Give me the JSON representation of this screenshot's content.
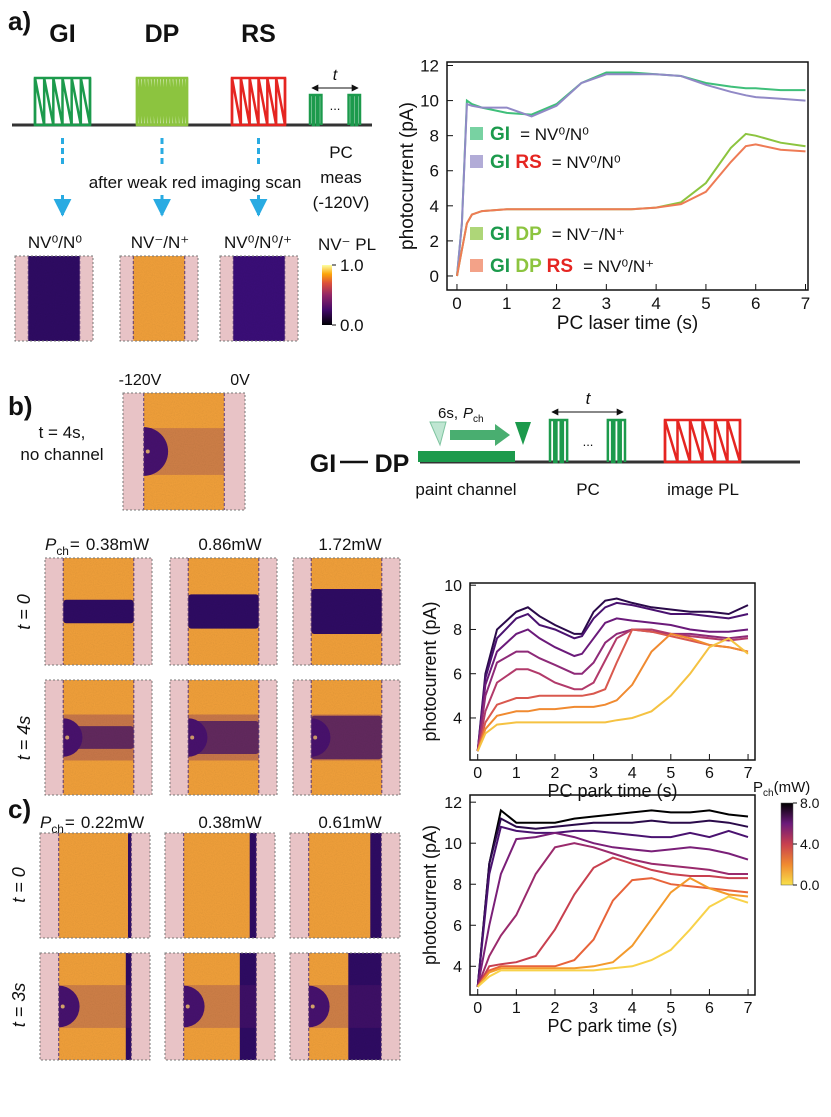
{
  "panel_labels": [
    "a)",
    "b)",
    "c)"
  ],
  "sequence_colors": {
    "GI": "#1c9a4c",
    "DP": "#8cc43f",
    "RS": "#e52521"
  },
  "panel_a": {
    "pulses": [
      "GI",
      "DP",
      "RS"
    ],
    "period": "t",
    "ellipsis": "...",
    "pc_meas": [
      "PC",
      "meas",
      "(-120V)"
    ],
    "scan_note": "after weak red imaging scan",
    "states": [
      "NV⁰/N⁰",
      "NV⁻/N⁺",
      "NV⁰/N⁰/⁺"
    ],
    "pl_colorbar": {
      "label": "NV⁻ PL",
      "lim": [
        0,
        1
      ],
      "ticks": [
        {
          "value": 1,
          "label": "1.0"
        },
        {
          "value": 0,
          "label": "0.0"
        }
      ]
    }
  },
  "panel_b": {
    "voltages": [
      "-120V",
      "0V"
    ],
    "reference": [
      "t = 4s,",
      "no channel"
    ],
    "sequence": [
      "GI",
      "DP"
    ],
    "paint": {
      "text": "6s,",
      "symbol": "P",
      "sub": "ch"
    },
    "period": "t",
    "ellipsis": "...",
    "steps": [
      "paint channel",
      "PC",
      "image PL"
    ],
    "power_symbol": "P",
    "power_sub": "ch",
    "equals": "=",
    "powers": [
      "0.38mW",
      "0.86mW",
      "1.72mW"
    ],
    "rows": [
      "t = 0",
      "t = 4s"
    ]
  },
  "panel_c": {
    "power_symbol": "P",
    "power_sub": "ch",
    "equals": "=",
    "powers": [
      "0.22mW",
      "0.38mW",
      "0.61mW"
    ],
    "rows": [
      "t = 0",
      "t = 3s"
    ]
  },
  "chart_data": [
    {
      "type": "line",
      "x_label": "PC laser time (s)",
      "y_label": "photocurrent (pA)",
      "xlim": [
        -0.2,
        7.05
      ],
      "ylim": [
        -0.8,
        12.2
      ],
      "xticks": [
        0,
        1,
        2,
        3,
        4,
        5,
        6,
        7
      ],
      "yticks": [
        0,
        2,
        4,
        6,
        8,
        10,
        12
      ],
      "x": [
        0,
        0.1,
        0.2,
        0.3,
        0.5,
        1,
        1.5,
        2,
        2.5,
        3,
        3.5,
        4,
        4.5,
        5,
        5.5,
        5.8,
        6,
        6.5,
        7
      ],
      "series": [
        {
          "name": "GI",
          "note": "= NV⁰/N⁰",
          "color": "#3fbf7a",
          "values": [
            0,
            3,
            10,
            9.8,
            9.6,
            9.3,
            9.2,
            9.8,
            11,
            11.6,
            11.6,
            11.5,
            11.4,
            11,
            10.8,
            10.7,
            10.7,
            10.6,
            10.6
          ]
        },
        {
          "name": "GI RS",
          "note": "= NV⁰/N⁰",
          "color": "#9189c6",
          "values": [
            0,
            3,
            9.8,
            9.7,
            9.6,
            9.6,
            9.1,
            9.7,
            11,
            11.5,
            11.5,
            11.5,
            11.4,
            10.9,
            10.5,
            10.3,
            10.2,
            10.1,
            10
          ]
        },
        {
          "name": "GI DP",
          "note": "= NV⁻/N⁺",
          "color": "#8cc43f",
          "values": [
            0,
            1.5,
            3,
            3.5,
            3.7,
            3.8,
            3.8,
            3.8,
            3.8,
            3.8,
            3.8,
            3.9,
            4.2,
            5.3,
            7.3,
            8.1,
            8,
            7.6,
            7.4
          ]
        },
        {
          "name": "GI DP RS",
          "note": "= NV⁰/N⁺",
          "color": "#ee7b55",
          "values": [
            0,
            1.5,
            3,
            3.5,
            3.7,
            3.8,
            3.8,
            3.8,
            3.8,
            3.8,
            3.8,
            3.9,
            4.1,
            4.8,
            6.5,
            7.4,
            7.5,
            7.2,
            7.1
          ]
        }
      ]
    },
    {
      "type": "line",
      "x_label": "PC park time (s)",
      "y_label": "photocurrent (pA)",
      "xlim": [
        -0.2,
        7.18
      ],
      "ylim": [
        2.1,
        10.1
      ],
      "xticks": [
        0,
        1,
        2,
        3,
        4,
        5,
        6,
        7
      ],
      "yticks": [
        4,
        6,
        8,
        10
      ],
      "x": [
        0,
        0.2,
        0.5,
        1,
        1.3,
        1.6,
        2,
        2.5,
        2.7,
        3,
        3.3,
        3.6,
        4,
        4.5,
        5,
        5.5,
        6,
        6.5,
        7
      ],
      "series": [
        {
          "color": "#2a0a4a",
          "values": [
            2.5,
            6,
            8,
            8.8,
            9,
            8.6,
            8.2,
            7.8,
            7.8,
            8.8,
            9.3,
            9.4,
            9.2,
            9,
            8.9,
            8.8,
            8.8,
            8.7,
            9.1
          ]
        },
        {
          "color": "#4a1270",
          "values": [
            2.5,
            5.8,
            7.6,
            8.5,
            8.7,
            8.2,
            8,
            7.6,
            7.7,
            8.5,
            9,
            9.2,
            9.1,
            8.9,
            8.7,
            8.7,
            8.6,
            8.5,
            8.7
          ]
        },
        {
          "color": "#6b1a7a",
          "values": [
            2.5,
            5.5,
            7,
            7.8,
            8,
            7.6,
            7.2,
            6.8,
            6.9,
            7.6,
            8.3,
            8.5,
            8.4,
            8.3,
            8.2,
            8,
            7.9,
            7.9,
            8
          ]
        },
        {
          "color": "#8e2a78",
          "values": [
            2.5,
            5,
            6.5,
            7,
            7,
            6.7,
            6.4,
            6,
            6,
            6.5,
            7.4,
            7.8,
            8,
            7.9,
            7.8,
            7.8,
            7.7,
            7.6,
            7.7
          ]
        },
        {
          "color": "#b23a6a",
          "values": [
            2.5,
            4.3,
            5.6,
            6.2,
            6.2,
            6,
            5.6,
            5.3,
            5.3,
            5.6,
            6.6,
            7.6,
            8,
            8,
            7.8,
            7.7,
            7.6,
            7.5,
            7.6
          ]
        },
        {
          "color": "#d9584e",
          "values": [
            2.5,
            3.8,
            4.6,
            4.9,
            4.9,
            5,
            5,
            5,
            5,
            5.1,
            5.3,
            6.5,
            8,
            7.9,
            7.7,
            7.5,
            7.3,
            7.2,
            7
          ]
        },
        {
          "color": "#f08a30",
          "values": [
            2.5,
            3.5,
            4.1,
            4.3,
            4.3,
            4.4,
            4.4,
            4.5,
            4.5,
            4.5,
            4.6,
            4.8,
            5.5,
            7,
            7.8,
            7.6,
            7.3,
            7.2,
            7
          ]
        },
        {
          "color": "#f5c242",
          "values": [
            2.5,
            3.3,
            3.7,
            3.8,
            3.8,
            3.8,
            3.8,
            3.8,
            3.8,
            3.8,
            3.8,
            3.9,
            4,
            4.3,
            5,
            6,
            7.2,
            7.6,
            6.9
          ]
        }
      ],
      "colorbar": {
        "symbol": "P",
        "sub": "ch",
        "unit": "(mW)",
        "lim": [
          0,
          8
        ],
        "ticks": [
          {
            "value": 8,
            "label": "8.0"
          },
          {
            "value": 4,
            "label": "4.0"
          },
          {
            "value": 0,
            "label": "0.0"
          }
        ],
        "colors": [
          "#f8e04a",
          "#f08a30",
          "#c8404f",
          "#6b1a7a",
          "#000000"
        ]
      }
    },
    {
      "type": "line",
      "x_label": "PC park time (s)",
      "y_label": "photocurrent (pA)",
      "xlim": [
        -0.2,
        7.18
      ],
      "ylim": [
        2.6,
        12.35
      ],
      "xticks": [
        0,
        1,
        2,
        3,
        4,
        5,
        6,
        7
      ],
      "yticks": [
        4,
        6,
        8,
        10,
        12
      ],
      "x": [
        0,
        0.3,
        0.6,
        1,
        1.5,
        2,
        2.5,
        3,
        3.5,
        4,
        4.5,
        5,
        5.5,
        6,
        6.5,
        7
      ],
      "series": [
        {
          "color": "#000000",
          "values": [
            3,
            9,
            11.6,
            11,
            11,
            11,
            11.2,
            11.3,
            11.4,
            11.5,
            11.6,
            11.5,
            11.5,
            11.6,
            11.4,
            11.3
          ]
        },
        {
          "color": "#2a0a4a",
          "values": [
            3,
            9,
            11.2,
            10.8,
            10.7,
            10.8,
            10.9,
            11,
            11,
            11,
            11.1,
            11,
            11,
            11.1,
            11,
            10.8
          ]
        },
        {
          "color": "#4a1270",
          "values": [
            3,
            8.5,
            10.8,
            10.6,
            10.5,
            10.5,
            10.6,
            10.6,
            10.5,
            10.4,
            10.3,
            10.3,
            10.5,
            10.3,
            10.6,
            10.3
          ]
        },
        {
          "color": "#7a1f78",
          "values": [
            3,
            6,
            8.5,
            10.2,
            10.3,
            10.5,
            10.3,
            10,
            9.8,
            9.7,
            9.6,
            9.7,
            9.8,
            9.7,
            9.5,
            9.2
          ]
        },
        {
          "color": "#9a2a6c",
          "values": [
            3,
            4.5,
            5.5,
            6.5,
            8.5,
            9.8,
            10,
            9.8,
            9.5,
            9.2,
            9,
            8.9,
            8.8,
            8.7,
            8.5,
            8.5
          ]
        },
        {
          "color": "#c8404f",
          "values": [
            3,
            4,
            4.1,
            4.2,
            4.5,
            5.8,
            7.5,
            8.8,
            9.3,
            9,
            8.7,
            8.5,
            8.4,
            8.4,
            8.3,
            8.3
          ]
        },
        {
          "color": "#e8643a",
          "values": [
            3,
            3.8,
            4,
            4,
            4,
            4,
            4.3,
            5.3,
            7.2,
            8.2,
            8.3,
            8,
            7.9,
            7.8,
            7.7,
            7.6
          ]
        },
        {
          "color": "#f39a2c",
          "values": [
            3,
            3.7,
            3.9,
            3.9,
            3.9,
            3.9,
            3.9,
            4,
            4.2,
            5,
            6.3,
            7.6,
            8.3,
            7.8,
            7.5,
            7.4
          ]
        },
        {
          "color": "#f8d24a",
          "values": [
            3,
            3.5,
            3.8,
            3.8,
            3.8,
            3.8,
            3.8,
            3.8,
            3.9,
            4,
            4.3,
            4.8,
            5.8,
            6.9,
            7.4,
            7.1
          ]
        }
      ]
    }
  ]
}
